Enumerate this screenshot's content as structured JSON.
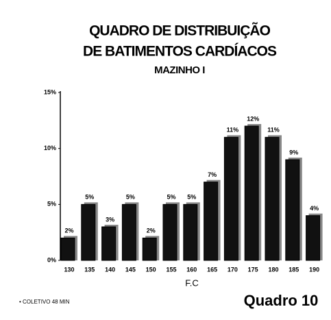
{
  "chart_data": {
    "type": "bar",
    "title": [
      "QUADRO DE DISTRIBUIÇÃO",
      "DE BATIMENTOS CARDÍACOS"
    ],
    "subtitle": "MAZINHO I",
    "x_label": "F.C",
    "categories": [
      "130",
      "135",
      "140",
      "145",
      "150",
      "155",
      "160",
      "165",
      "170",
      "175",
      "180",
      "185",
      "190"
    ],
    "values": [
      2,
      5,
      3,
      5,
      2,
      5,
      5,
      7,
      11,
      12,
      11,
      9,
      4
    ],
    "value_labels": [
      "2%",
      "5%",
      "3%",
      "5%",
      "2%",
      "5%",
      "5%",
      "7%",
      "11%",
      "12%",
      "11%",
      "9%",
      "4%"
    ],
    "color": "#111111",
    "ylim": [
      0,
      15
    ],
    "yticks": [
      {
        "value": 0,
        "label": "0%"
      },
      {
        "value": 5,
        "label": "5%"
      },
      {
        "value": 10,
        "label": "10%"
      },
      {
        "value": 15,
        "label": "15%"
      }
    ],
    "note": "• COLETIVO 48 MIN",
    "figure_label": "Quadro 10"
  }
}
